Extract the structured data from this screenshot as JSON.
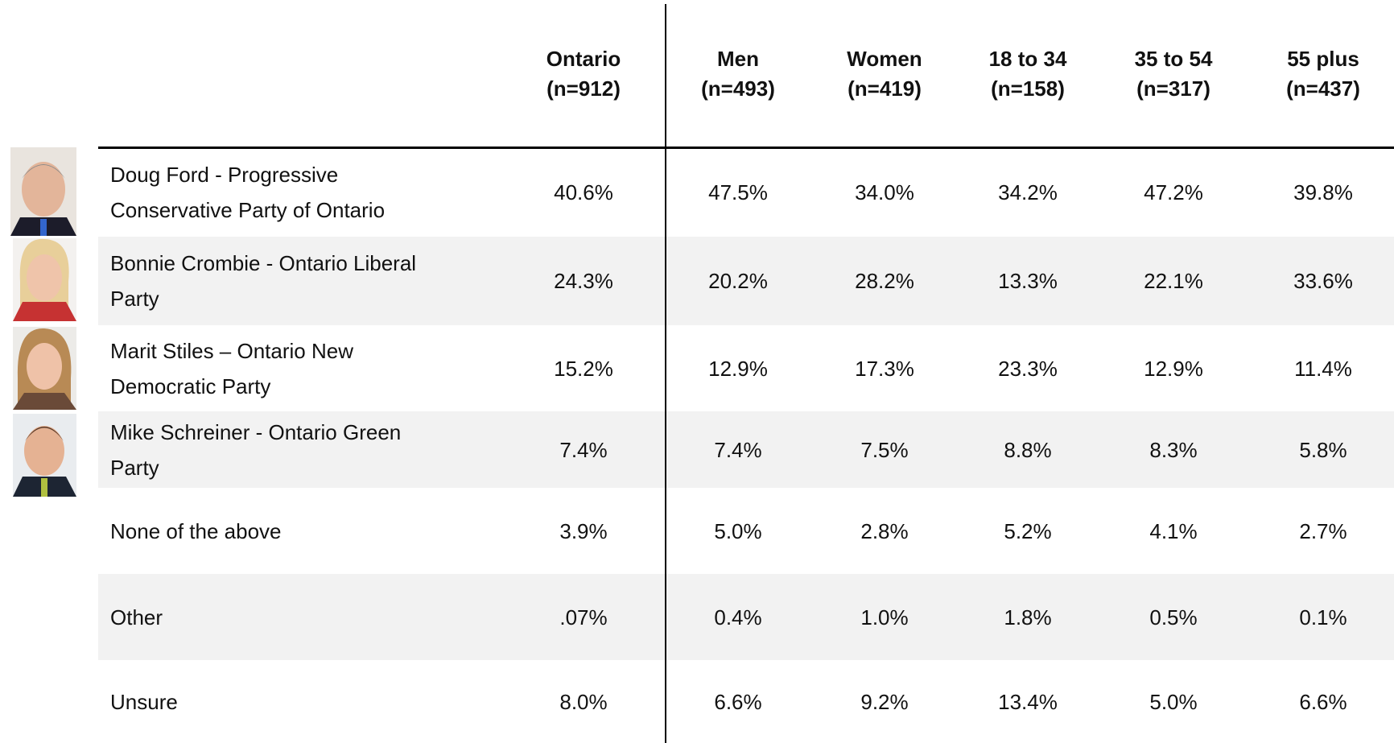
{
  "table": {
    "columns": [
      [
        "Ontario",
        "(n=912)"
      ],
      [
        "Men",
        "(n=493)"
      ],
      [
        "Women",
        "(n=419)"
      ],
      [
        "18 to 34",
        "(n=158)"
      ],
      [
        "35 to 54",
        "(n=317)"
      ],
      [
        "55 plus",
        "(n=437)"
      ]
    ],
    "rows": [
      {
        "label": [
          "Doug Ford - Progressive",
          "Conservative Party of Ontario"
        ],
        "values": [
          "40.6%",
          "47.5%",
          "34.0%",
          "34.2%",
          "47.2%",
          "39.8%"
        ]
      },
      {
        "label": [
          "Bonnie Crombie - Ontario Liberal",
          "Party"
        ],
        "values": [
          "24.3%",
          "20.2%",
          "28.2%",
          "13.3%",
          "22.1%",
          "33.6%"
        ]
      },
      {
        "label": [
          "Marit Stiles – Ontario New",
          "Democratic Party"
        ],
        "values": [
          "15.2%",
          "12.9%",
          "17.3%",
          "23.3%",
          "12.9%",
          "11.4%"
        ]
      },
      {
        "label": [
          "Mike Schreiner - Ontario Green",
          "Party"
        ],
        "values": [
          "7.4%",
          "7.4%",
          "7.5%",
          "8.8%",
          "8.3%",
          "5.8%"
        ]
      },
      {
        "label": [
          "None of the above"
        ],
        "values": [
          "3.9%",
          "5.0%",
          "2.8%",
          "5.2%",
          "4.1%",
          "2.7%"
        ]
      },
      {
        "label": [
          "Other"
        ],
        "values": [
          ".07%",
          "0.4%",
          "1.0%",
          "1.8%",
          "0.5%",
          "0.1%"
        ]
      },
      {
        "label": [
          "Unsure"
        ],
        "values": [
          "8.0%",
          "6.6%",
          "9.2%",
          "13.4%",
          "5.0%",
          "6.6%"
        ]
      }
    ]
  }
}
